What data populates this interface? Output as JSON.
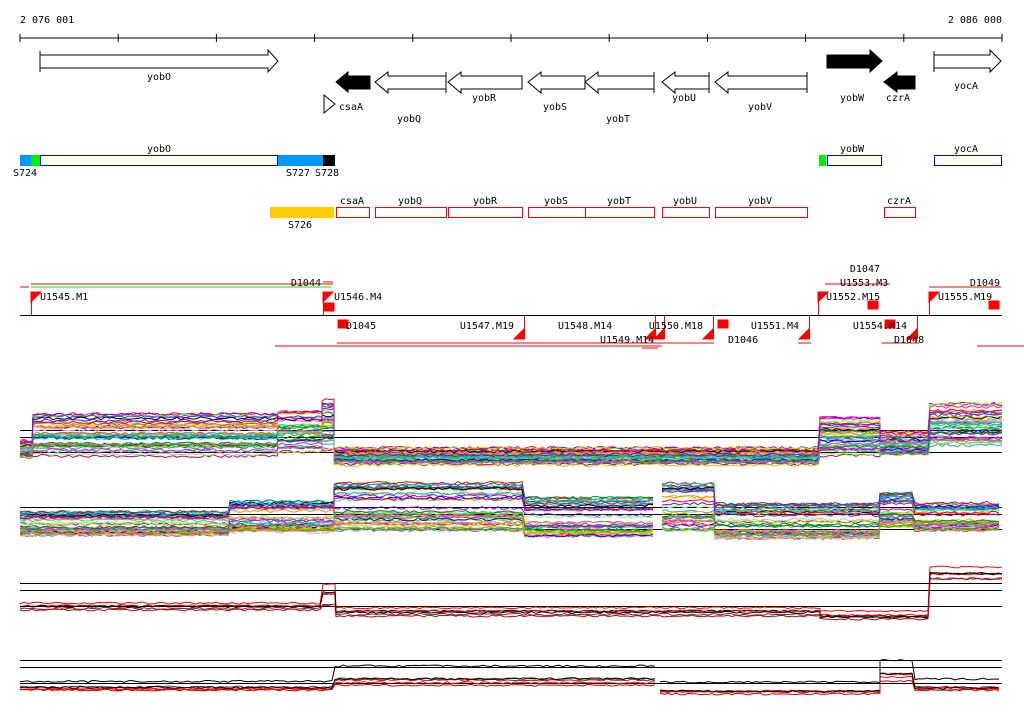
{
  "ruler": {
    "start": "2 076 001",
    "end": "2 086 000"
  },
  "genes": {
    "yobO": "yobO",
    "csaA": "csaA",
    "yobQ": "yobQ",
    "yobR": "yobR",
    "yobS": "yobS",
    "yobT": "yobT",
    "yobU": "yobU",
    "yobV": "yobV",
    "yobW": "yobW",
    "czrA": "czrA",
    "yocA": "yocA"
  },
  "sigma_track": {
    "yobO": "yobO",
    "yobW": "yobW",
    "yocA": "yocA",
    "s724": "S724",
    "s727": "S727",
    "s728": "S728"
  },
  "operon_track": {
    "s726": "S726",
    "csaA": "csaA",
    "yobQ": "yobQ",
    "yobR": "yobR",
    "yobS": "yobS",
    "yobT": "yobT",
    "yobU": "yobU",
    "yobV": "yobV",
    "czrA": "czrA"
  },
  "transcripts": {
    "u1545": "U1545.M1",
    "u1546": "U1546.M4",
    "d1044": "D1044",
    "d1045": "D1045",
    "u1547": "U1547.M19",
    "u1548": "U1548.M14",
    "u1549": "U1549.M14",
    "u1550": "U1550.M18",
    "d1046": "D1046",
    "u1551": "U1551.M4",
    "u1552": "U1552.M15",
    "u1553": "U1553.M3",
    "d1047": "D1047",
    "d1048": "D1048",
    "u1554": "U1554.M14",
    "u1555": "U1555.M19",
    "d1049": "D1049"
  },
  "colors": {
    "sigma_a": "#0099ff",
    "sigma_b": "#00ee00",
    "operon_fill": "#ffcc00",
    "feature_red": "#ff0000",
    "feature_blue": "#0000ff"
  }
}
